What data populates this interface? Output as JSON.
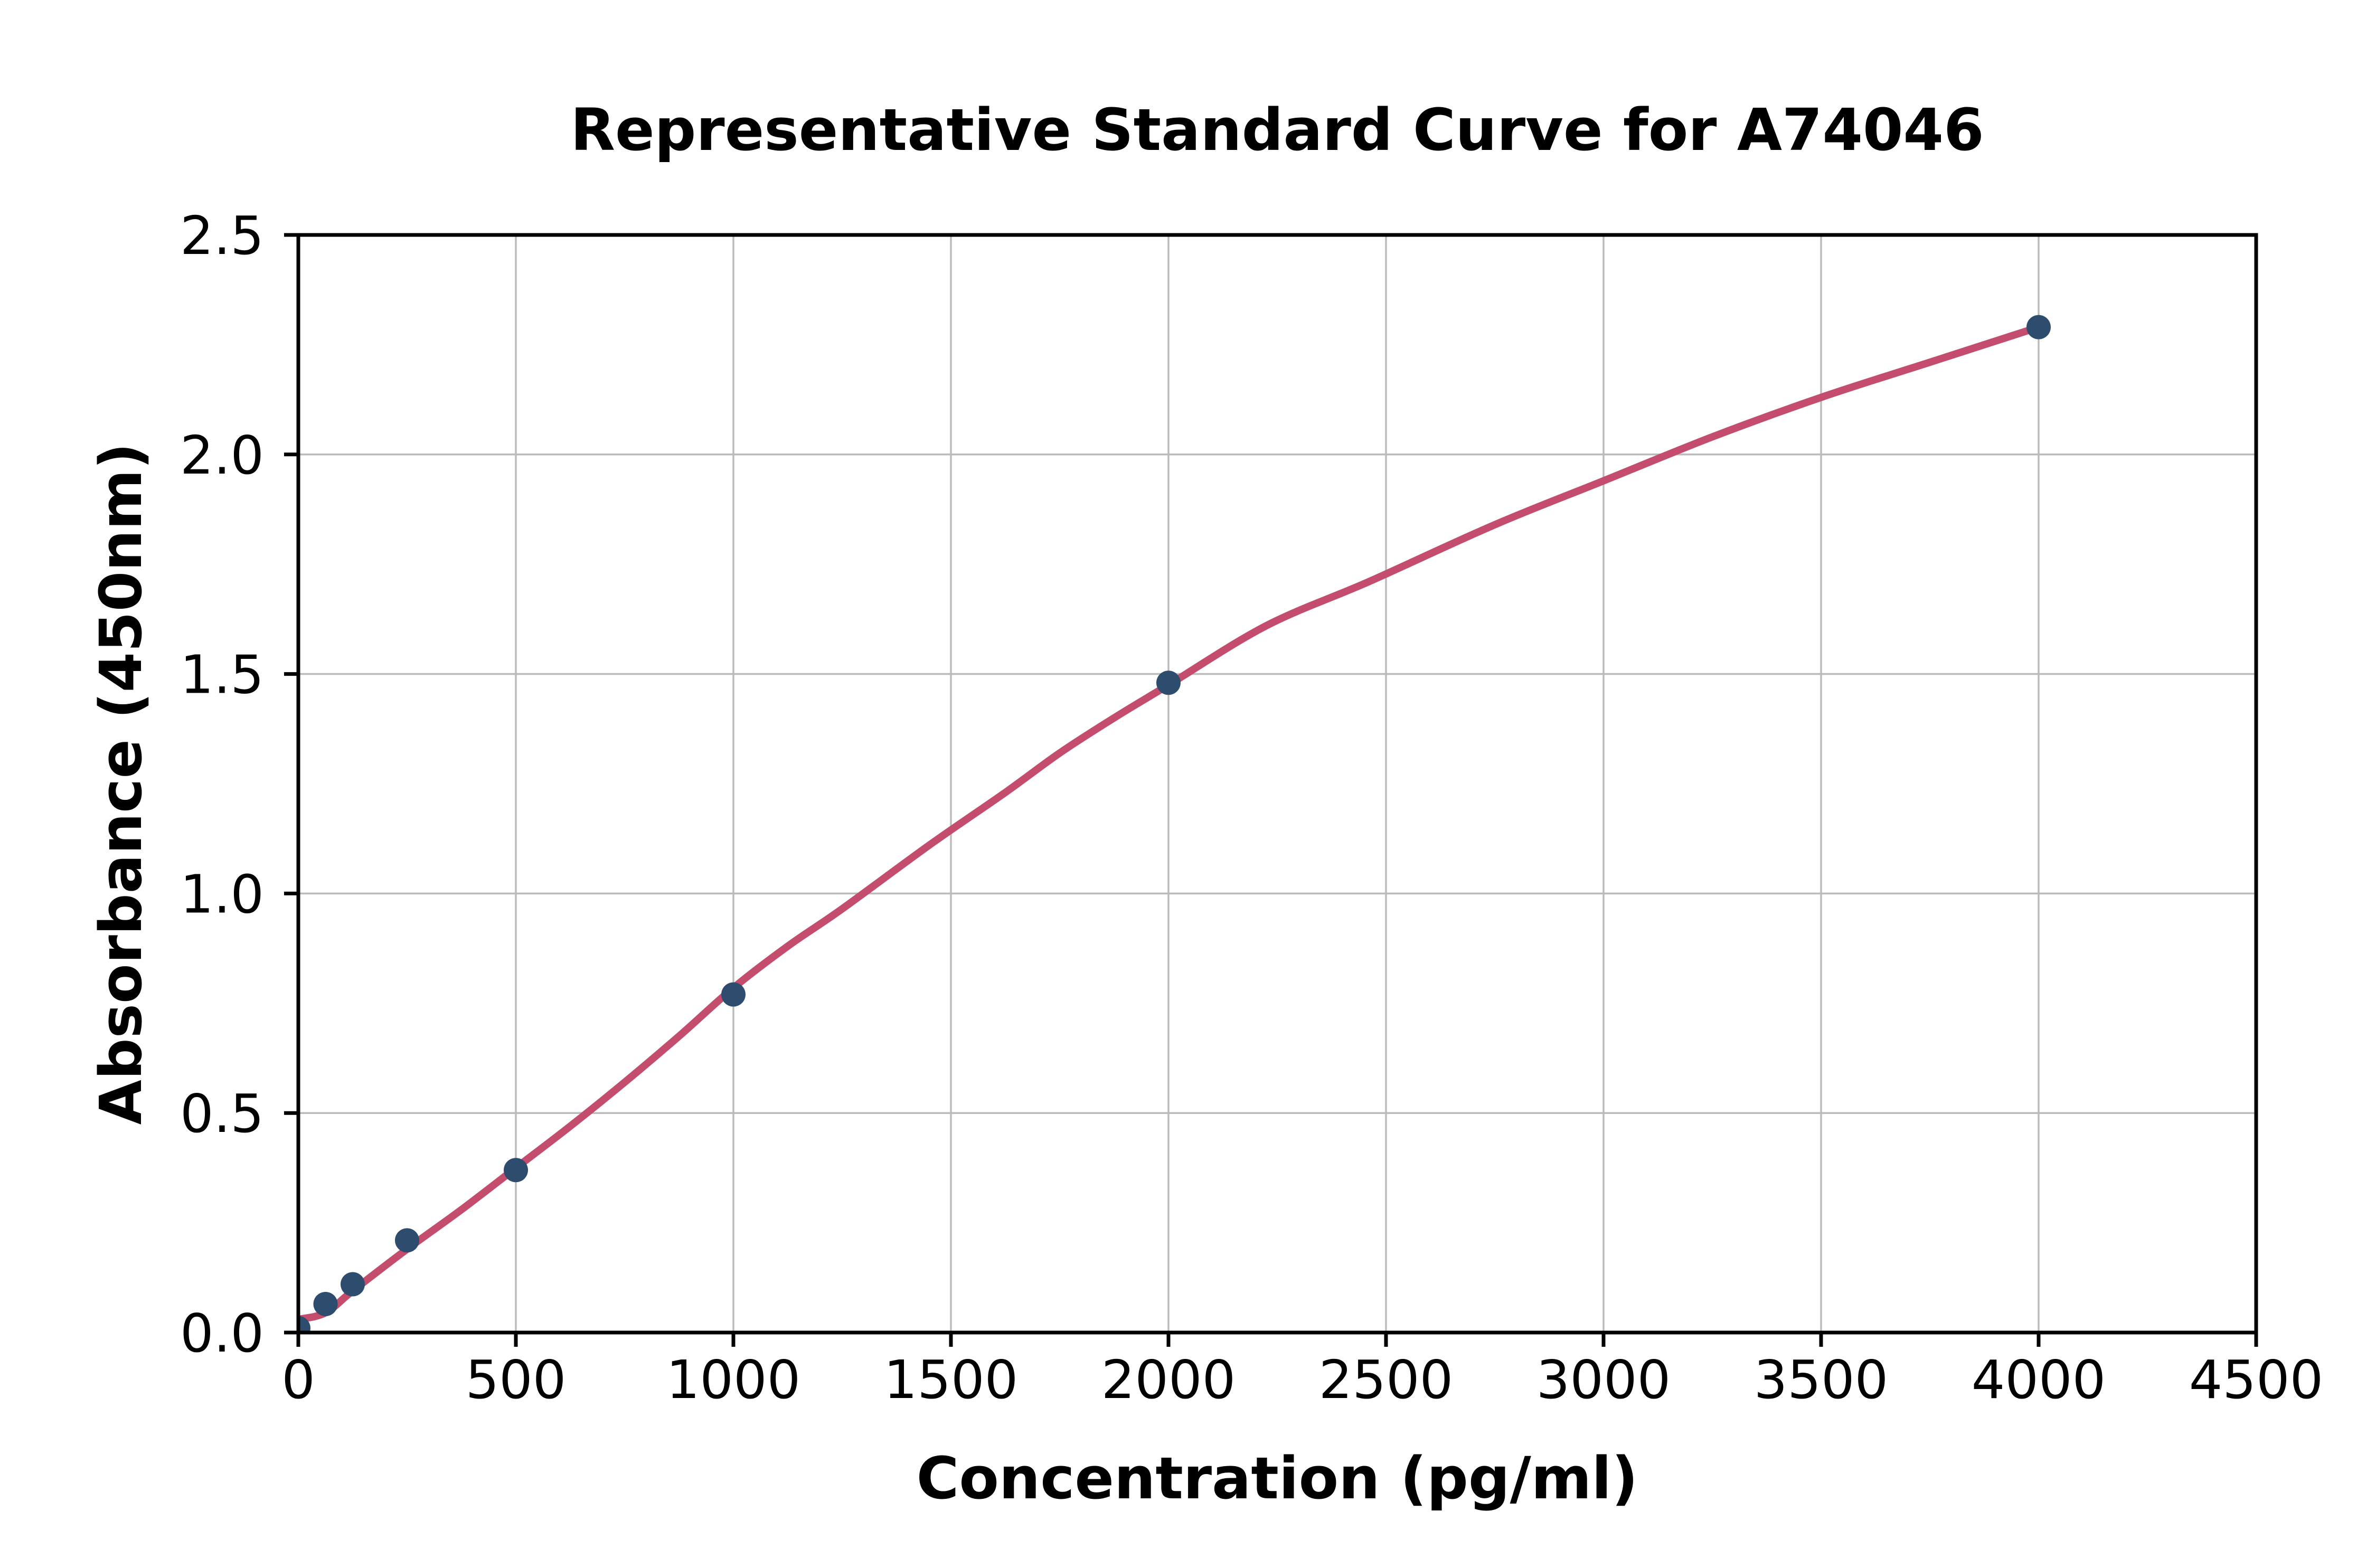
{
  "chart_data": {
    "type": "scatter",
    "title": "Representative Standard Curve for A74046",
    "xlabel": "Concentration (pg/ml)",
    "ylabel": "Absorbance (450nm)",
    "xlim": [
      0,
      4500
    ],
    "ylim": [
      0,
      2.5
    ],
    "x_ticks": [
      0,
      500,
      1000,
      1500,
      2000,
      2500,
      3000,
      3500,
      4000,
      4500
    ],
    "y_ticks": [
      0.0,
      0.5,
      1.0,
      1.5,
      2.0,
      2.5
    ],
    "grid": true,
    "legend": false,
    "series": [
      {
        "name": "standard-points",
        "type": "scatter",
        "x": [
          0,
          62.5,
          125,
          250,
          500,
          1000,
          2000,
          4000
        ],
        "y": [
          0.01,
          0.065,
          0.11,
          0.21,
          0.37,
          0.77,
          1.48,
          2.29
        ]
      },
      {
        "name": "4pl-fit-line",
        "type": "line",
        "x": [
          0,
          62.5,
          125,
          250,
          375,
          500,
          625,
          750,
          875,
          1000,
          1125,
          1250,
          1450,
          1625,
          1750,
          1875,
          2000,
          2225,
          2460,
          2750,
          3000,
          3250,
          3500,
          3750,
          4000
        ],
        "y": [
          0.03,
          0.045,
          0.095,
          0.19,
          0.28,
          0.375,
          0.47,
          0.57,
          0.675,
          0.785,
          0.88,
          0.965,
          1.11,
          1.23,
          1.32,
          1.4,
          1.475,
          1.61,
          1.71,
          1.84,
          1.94,
          2.04,
          2.13,
          2.21,
          2.29
        ]
      }
    ],
    "colors": {
      "points": "#2E4D6E",
      "line": "#C44D6E",
      "grid": "#BBBBBB",
      "spine": "#000000",
      "text": "#000000",
      "background": "#FFFFFF"
    }
  }
}
